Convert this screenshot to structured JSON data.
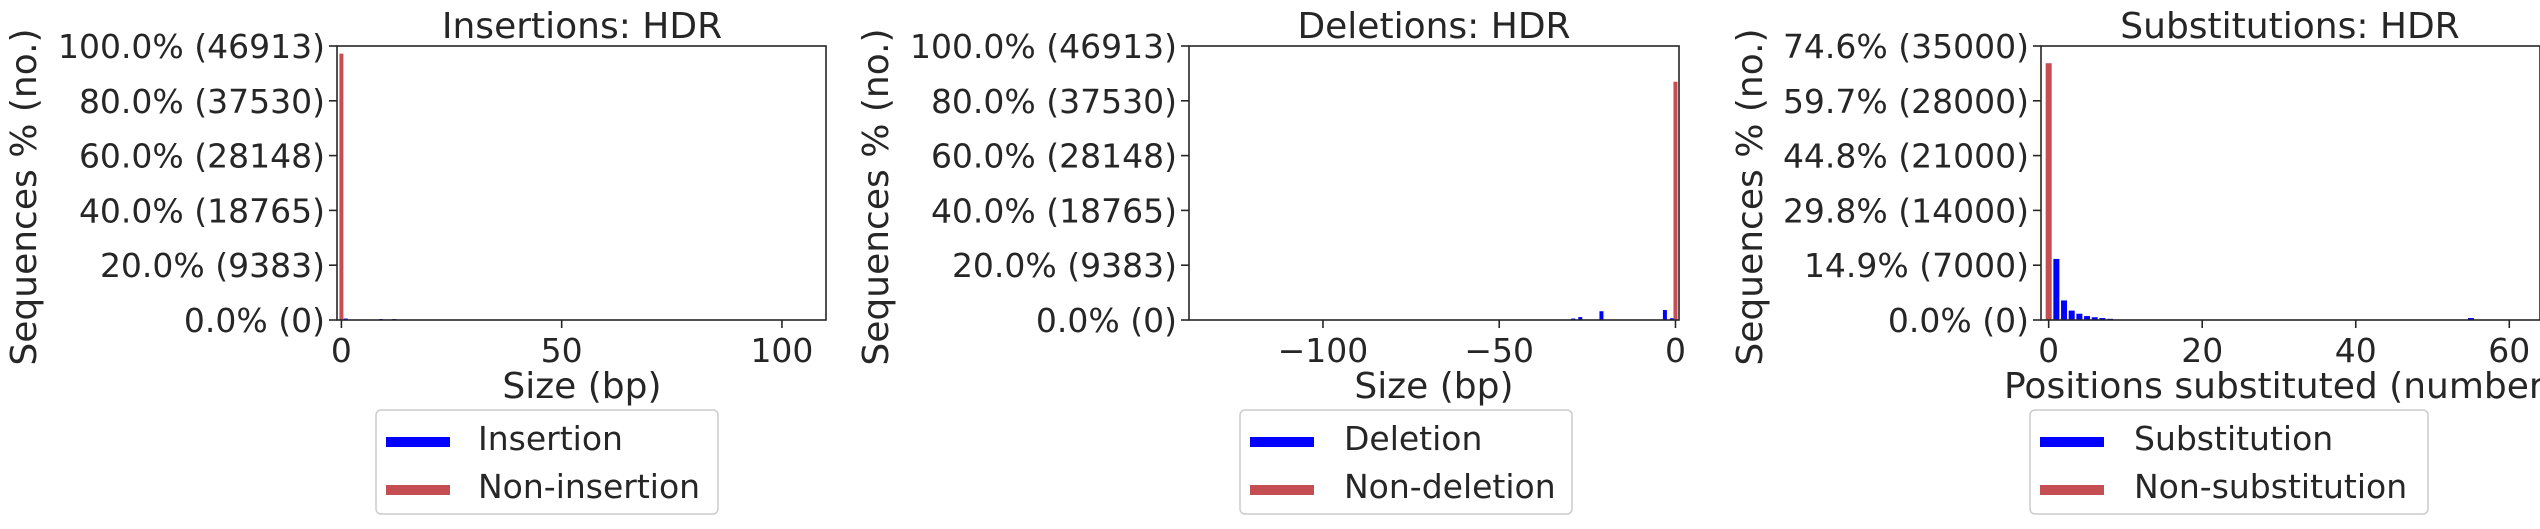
{
  "colors": {
    "event": "#0000ff",
    "non_event": "#c44e52",
    "axis": "#262626"
  },
  "chart_data": [
    {
      "type": "bar",
      "title": "Insertions: HDR",
      "xlabel": "Size (bp)",
      "ylabel": "Sequences % (no.)",
      "total": 46913,
      "xlim": [
        -1,
        110
      ],
      "ylim": [
        0,
        46913
      ],
      "x_ticks": [
        {
          "v": 0,
          "label": "0"
        },
        {
          "v": 50,
          "label": "50"
        },
        {
          "v": 100,
          "label": "100"
        }
      ],
      "y_ticks": [
        {
          "v": 0,
          "label": "0.0% (0)"
        },
        {
          "v": 9383,
          "label": "20.0% (9383)"
        },
        {
          "v": 18765,
          "label": "40.0% (18765)"
        },
        {
          "v": 28148,
          "label": "60.0% (28148)"
        },
        {
          "v": 37530,
          "label": "80.0% (37530)"
        },
        {
          "v": 46913,
          "label": "100.0% (46913)"
        }
      ],
      "series": [
        {
          "name": "Insertion",
          "x": [
            1,
            9,
            12
          ],
          "values": [
            250,
            90,
            80
          ]
        },
        {
          "name": "Non-insertion",
          "x": [
            0
          ],
          "values": [
            45600
          ]
        }
      ],
      "legend": {
        "position": "below",
        "items": [
          "Insertion",
          "Non-insertion"
        ]
      }
    },
    {
      "type": "bar",
      "title": "Deletions: HDR",
      "xlabel": "Size (bp)",
      "ylabel": "Sequences % (no.)",
      "total": 46913,
      "xlim": [
        -138,
        1
      ],
      "ylim": [
        0,
        46913
      ],
      "x_ticks": [
        {
          "v": -100,
          "label": "−100"
        },
        {
          "v": -50,
          "label": "−50"
        },
        {
          "v": 0,
          "label": "0"
        }
      ],
      "y_ticks": [
        {
          "v": 0,
          "label": "0.0% (0)"
        },
        {
          "v": 9383,
          "label": "20.0% (9383)"
        },
        {
          "v": 18765,
          "label": "40.0% (18765)"
        },
        {
          "v": 28148,
          "label": "60.0% (28148)"
        },
        {
          "v": 37530,
          "label": "80.0% (37530)"
        },
        {
          "v": 46913,
          "label": "100.0% (46913)"
        }
      ],
      "series": [
        {
          "name": "Deletion",
          "x": [
            -29,
            -27,
            -21,
            -3,
            -1
          ],
          "values": [
            250,
            500,
            1500,
            1700,
            300
          ]
        },
        {
          "name": "Non-deletion",
          "x": [
            0
          ],
          "values": [
            40800
          ]
        }
      ],
      "legend": {
        "position": "below",
        "items": [
          "Deletion",
          "Non-deletion"
        ]
      }
    },
    {
      "type": "bar",
      "title": "Substitutions: HDR",
      "xlabel": "Positions substituted (number)",
      "ylabel": "Sequences % (no.)",
      "total": 46913,
      "xlim": [
        -1,
        64
      ],
      "ylim": [
        0,
        35000
      ],
      "x_ticks": [
        {
          "v": 0,
          "label": "0"
        },
        {
          "v": 20,
          "label": "20"
        },
        {
          "v": 40,
          "label": "40"
        },
        {
          "v": 60,
          "label": "60"
        }
      ],
      "y_ticks": [
        {
          "v": 0,
          "label": "0.0% (0)"
        },
        {
          "v": 7000,
          "label": "14.9% (7000)"
        },
        {
          "v": 14000,
          "label": "29.8% (14000)"
        },
        {
          "v": 21000,
          "label": "44.8% (21000)"
        },
        {
          "v": 28000,
          "label": "59.7% (28000)"
        },
        {
          "v": 35000,
          "label": "74.6% (35000)"
        }
      ],
      "series": [
        {
          "name": "Substitution",
          "x": [
            1,
            2,
            3,
            4,
            5,
            6,
            7,
            8,
            55
          ],
          "values": [
            7800,
            2500,
            1200,
            800,
            500,
            350,
            250,
            150,
            250
          ]
        },
        {
          "name": "Non-substitution",
          "x": [
            0
          ],
          "values": [
            32800
          ]
        }
      ],
      "legend": {
        "position": "below",
        "items": [
          "Substitution",
          "Non-substitution"
        ]
      }
    }
  ]
}
